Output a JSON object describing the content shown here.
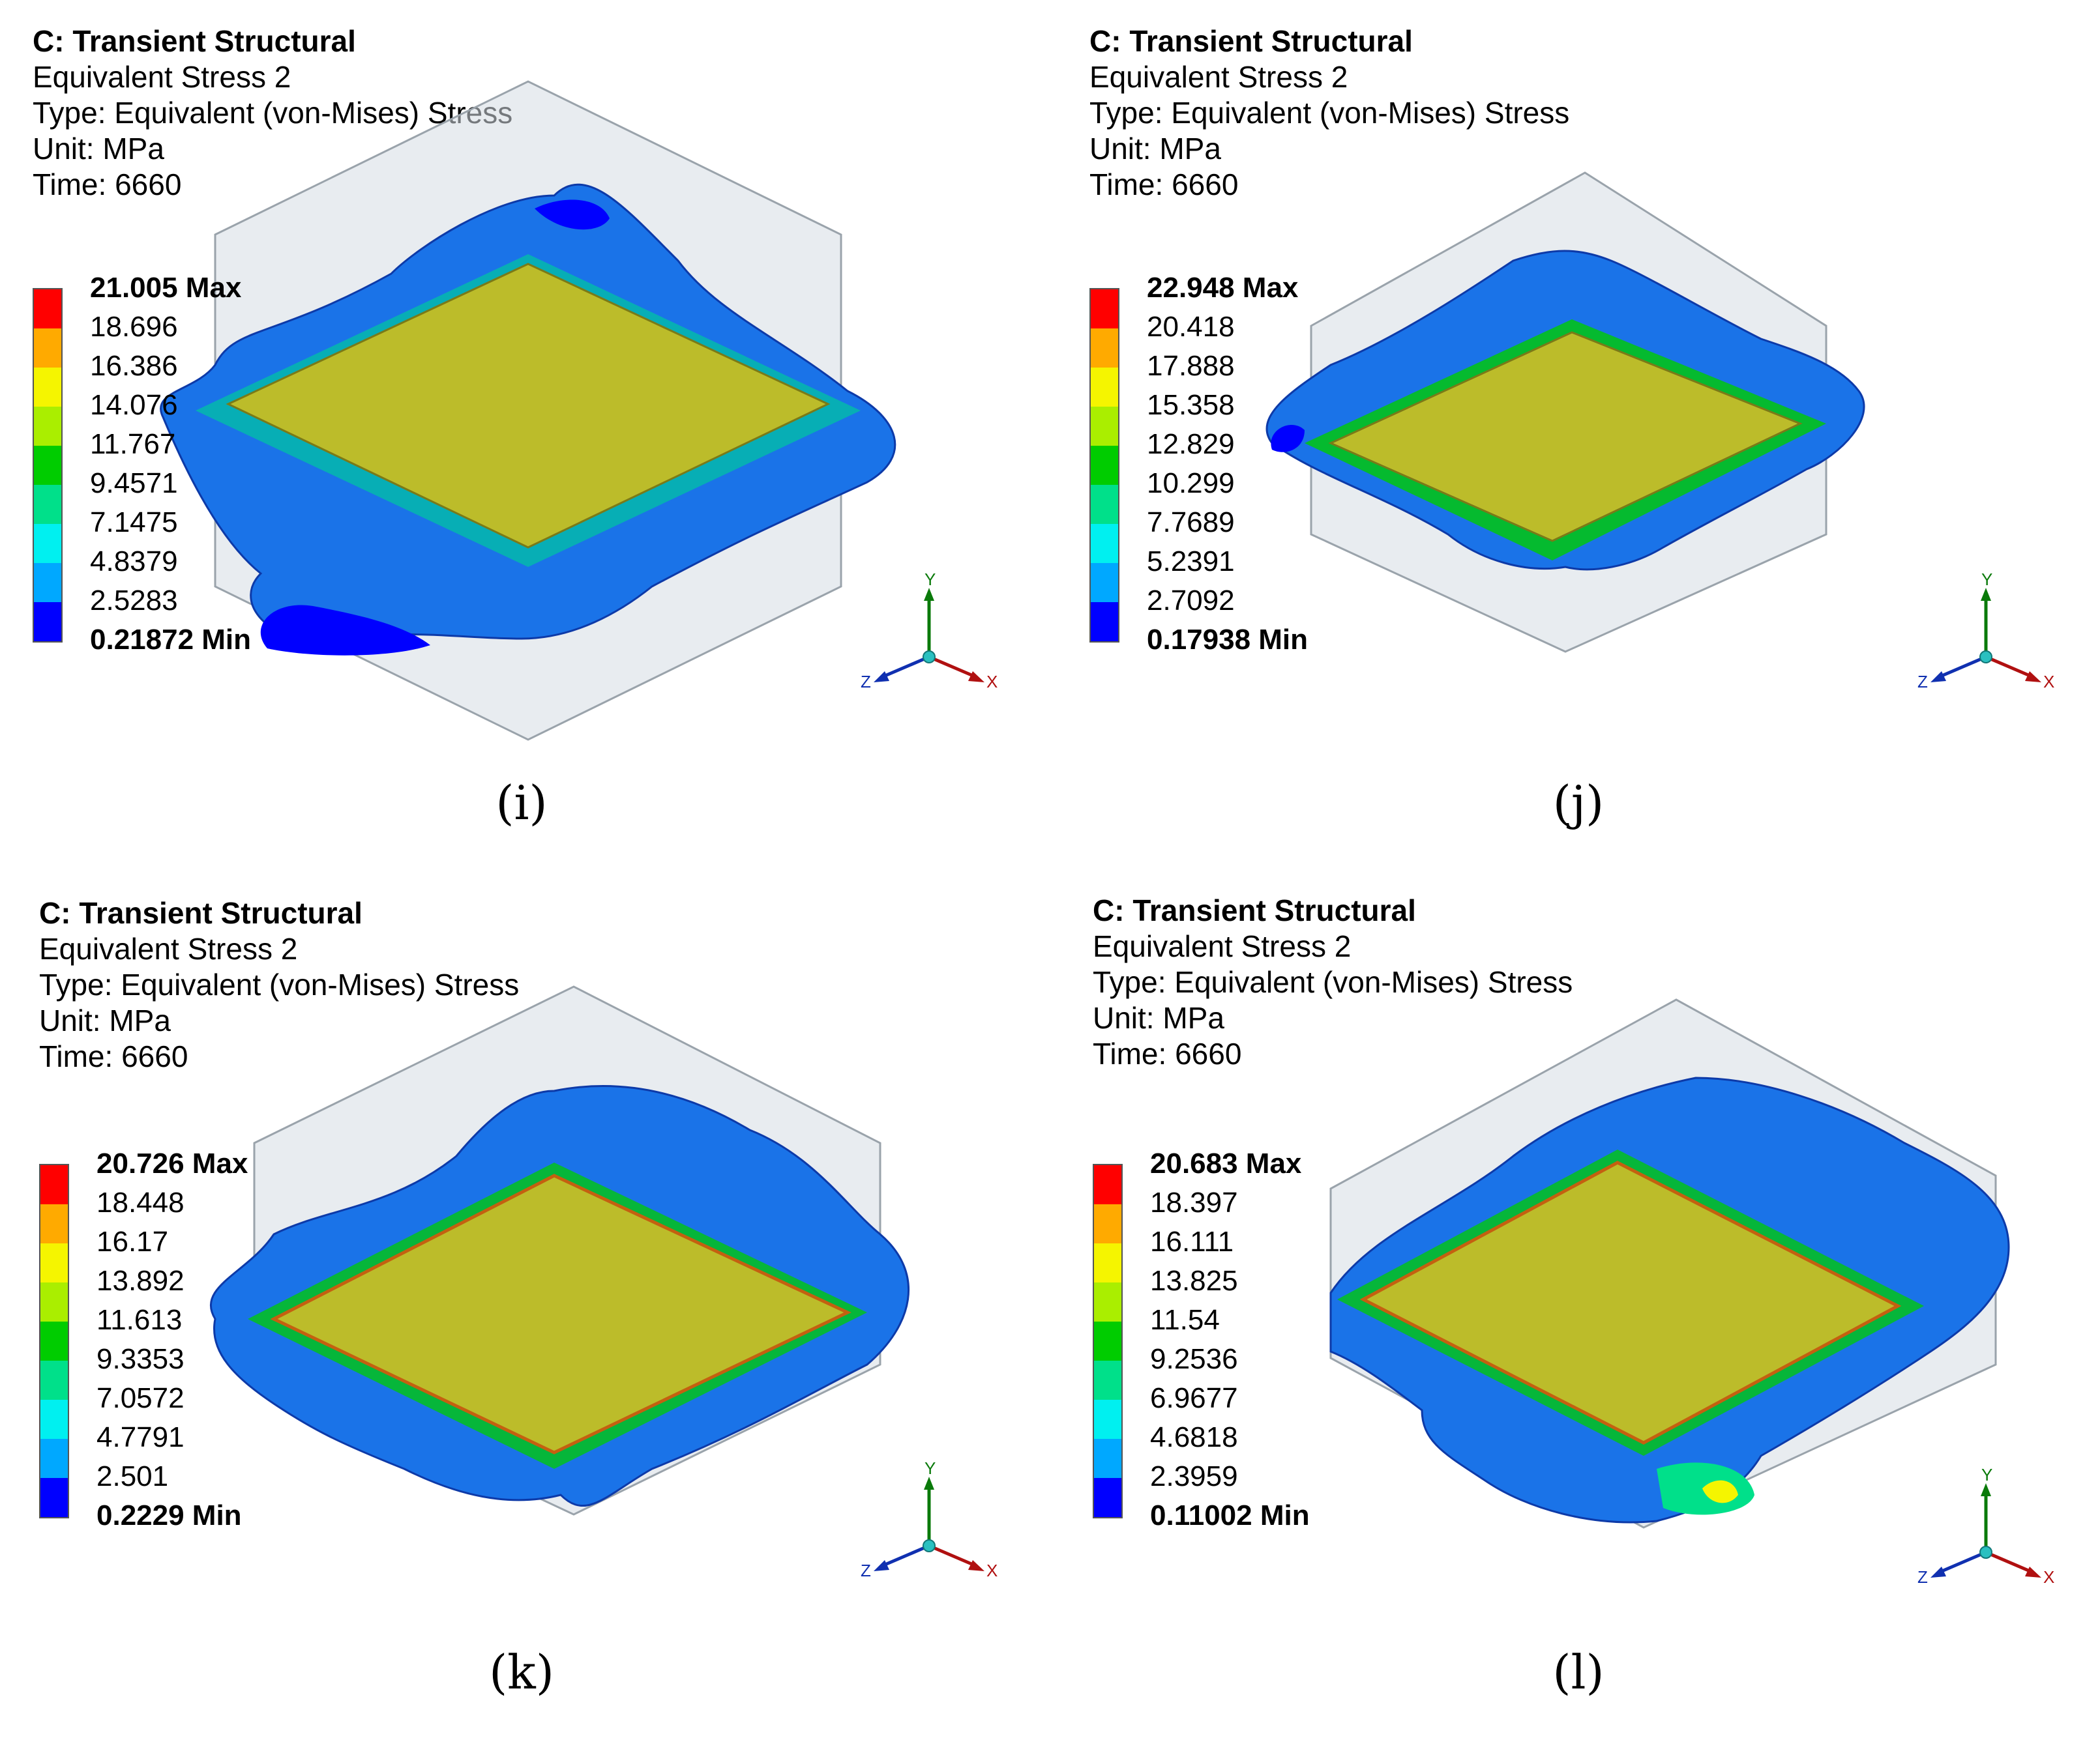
{
  "panels": [
    {
      "id": "i",
      "header": {
        "title": "C: Transient Structural",
        "result": "Equivalent Stress 2",
        "type": "Type: Equivalent (von-Mises) Stress",
        "unit": "Unit: MPa",
        "time": "Time: 6660"
      },
      "legend": [
        "21.005 Max",
        "18.696",
        "16.386",
        "14.076",
        "11.767",
        "9.4571",
        "7.1475",
        "4.8379",
        "2.5283",
        "0.21872 Min"
      ],
      "caption": "(i)",
      "axes": {
        "x": "X",
        "y": "Y",
        "z": "Z"
      }
    },
    {
      "id": "j",
      "header": {
        "title": "C: Transient Structural",
        "result": "Equivalent Stress 2",
        "type": "Type: Equivalent (von-Mises) Stress",
        "unit": "Unit: MPa",
        "time": "Time: 6660"
      },
      "legend": [
        "22.948 Max",
        "20.418",
        "17.888",
        "15.358",
        "12.829",
        "10.299",
        "7.7689",
        "5.2391",
        "2.7092",
        "0.17938 Min"
      ],
      "caption": "(j)",
      "axes": {
        "x": "X",
        "y": "Y",
        "z": "Z"
      }
    },
    {
      "id": "k",
      "header": {
        "title": "C: Transient Structural",
        "result": "Equivalent Stress 2",
        "type": "Type: Equivalent (von-Mises) Stress",
        "unit": "Unit: MPa",
        "time": "Time: 6660"
      },
      "legend": [
        "20.726 Max",
        "18.448",
        "16.17",
        "13.892",
        "11.613",
        "9.3353",
        "7.0572",
        "4.7791",
        "2.501",
        "0.2229 Min"
      ],
      "caption": "(k)",
      "axes": {
        "x": "X",
        "y": "Y",
        "z": "Z"
      }
    },
    {
      "id": "l",
      "header": {
        "title": "C: Transient Structural",
        "result": "Equivalent Stress 2",
        "type": "Type: Equivalent (von-Mises) Stress",
        "unit": "Unit: MPa",
        "time": "Time: 6660"
      },
      "legend": [
        "20.683 Max",
        "18.397",
        "16.111",
        "13.825",
        "11.54",
        "9.2536",
        "6.9677",
        "4.6818",
        "2.3959",
        "0.11002 Min"
      ],
      "caption": "(l)",
      "axes": {
        "x": "X",
        "y": "Y",
        "z": "Z"
      }
    }
  ],
  "colors": {
    "scale": [
      "#ff0000",
      "#ffaa00",
      "#f5f500",
      "#aaee00",
      "#00cc00",
      "#00e08a",
      "#00f0f0",
      "#00a8ff",
      "#0000ff"
    ],
    "plate": "#bcbc2a",
    "box": "#d6dde3"
  }
}
